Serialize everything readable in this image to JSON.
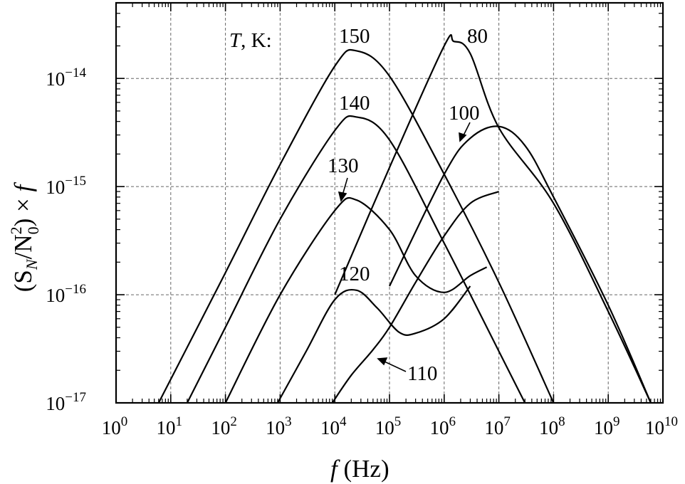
{
  "chart_data": {
    "type": "line",
    "xscale": "log",
    "yscale": "log",
    "xlim": [
      1,
      10000000000
    ],
    "ylim": [
      1e-17,
      5e-14
    ],
    "grid": true,
    "legend_title": "T, K:",
    "legend_title_parts": {
      "var": "T",
      "rest": ", K:"
    },
    "xlabel": "f (Hz)",
    "xlabel_parts": {
      "var": "f",
      "unit": " (Hz)"
    },
    "ylabel": "(S_N/N_0^2) × f",
    "ylabel_parts": {
      "open": "(S",
      "sub1": "N",
      "slash": "/N",
      "sup": "2",
      "sub2": "0",
      "close": ") × ",
      "var": "f"
    },
    "x_ticks": [
      {
        "value": 1,
        "base": "10",
        "exp": "0"
      },
      {
        "value": 10,
        "base": "10",
        "exp": "1"
      },
      {
        "value": 100,
        "base": "10",
        "exp": "2"
      },
      {
        "value": 1000,
        "base": "10",
        "exp": "3"
      },
      {
        "value": 10000,
        "base": "10",
        "exp": "4"
      },
      {
        "value": 100000,
        "base": "10",
        "exp": "5"
      },
      {
        "value": 1000000,
        "base": "10",
        "exp": "6"
      },
      {
        "value": 10000000,
        "base": "10",
        "exp": "7"
      },
      {
        "value": 100000000,
        "base": "10",
        "exp": "8"
      },
      {
        "value": 1000000000,
        "base": "10",
        "exp": "9"
      },
      {
        "value": 10000000000,
        "base": "10",
        "exp": "10"
      }
    ],
    "y_ticks": [
      {
        "value": 1e-17,
        "base": "10",
        "exp": "−17"
      },
      {
        "value": 1e-16,
        "base": "10",
        "exp": "−16"
      },
      {
        "value": 1e-15,
        "base": "10",
        "exp": "−15"
      },
      {
        "value": 1e-14,
        "base": "10",
        "exp": "−14"
      }
    ],
    "series": [
      {
        "name": "150",
        "x": [
          6,
          100,
          1000,
          10000,
          25000,
          100000,
          1000000,
          10000000,
          100000000
        ],
        "y": [
          1e-17,
          1.6e-16,
          1.6e-15,
          1.3e-14,
          1.8e-14,
          1.05e-14,
          1.3e-15,
          1.3e-16,
          1e-17
        ]
      },
      {
        "name": "140",
        "x": [
          20,
          100,
          1000,
          10000,
          25000,
          100000,
          1000000,
          10000000,
          30000000
        ],
        "y": [
          1e-17,
          5e-17,
          5e-16,
          3.3e-15,
          4.4e-15,
          2.7e-15,
          3e-16,
          3e-17,
          1e-17
        ]
      },
      {
        "name": "130",
        "x": [
          100,
          1000,
          10000,
          25000,
          100000,
          300000,
          1000000,
          3000000,
          6000000
        ],
        "y": [
          1e-17,
          1e-16,
          6e-16,
          7.5e-16,
          4e-16,
          1.5e-16,
          1.05e-16,
          1.5e-16,
          1.8e-16
        ]
      },
      {
        "name": "120",
        "x": [
          900,
          3000,
          10000,
          25000,
          60000,
          150000,
          300000,
          1000000,
          3000000
        ],
        "y": [
          1e-17,
          3e-17,
          9e-17,
          1.1e-16,
          7.5e-17,
          4.5e-17,
          4.4e-17,
          6e-17,
          1.2e-16
        ]
      },
      {
        "name": "110",
        "x": [
          9000,
          20000,
          50000,
          100000,
          300000,
          1000000,
          3000000,
          10000000
        ],
        "y": [
          1e-17,
          1.8e-17,
          3.1e-17,
          5e-17,
          1.3e-16,
          3.5e-16,
          7e-16,
          9e-16
        ]
      },
      {
        "name": "100",
        "x": [
          100000,
          1000000,
          3000000,
          10000000,
          30000000,
          100000000,
          1000000000,
          6000000000
        ],
        "y": [
          1.2e-16,
          1.3e-15,
          2.8e-15,
          3.6e-15,
          2.4e-15,
          8e-16,
          8e-17,
          1e-17
        ]
      },
      {
        "name": "80",
        "x": [
          10000,
          100000,
          1000000,
          1500000,
          3000000,
          10000000,
          100000000,
          1000000000,
          6000000000
        ],
        "y": [
          1e-16,
          1.5e-15,
          2e-14,
          2.2e-14,
          1.7e-14,
          3.5e-15,
          7e-16,
          7e-17,
          1e-17
        ]
      }
    ],
    "annotations": [
      "150",
      "80",
      "140",
      "100",
      "130",
      "120",
      "110"
    ]
  }
}
